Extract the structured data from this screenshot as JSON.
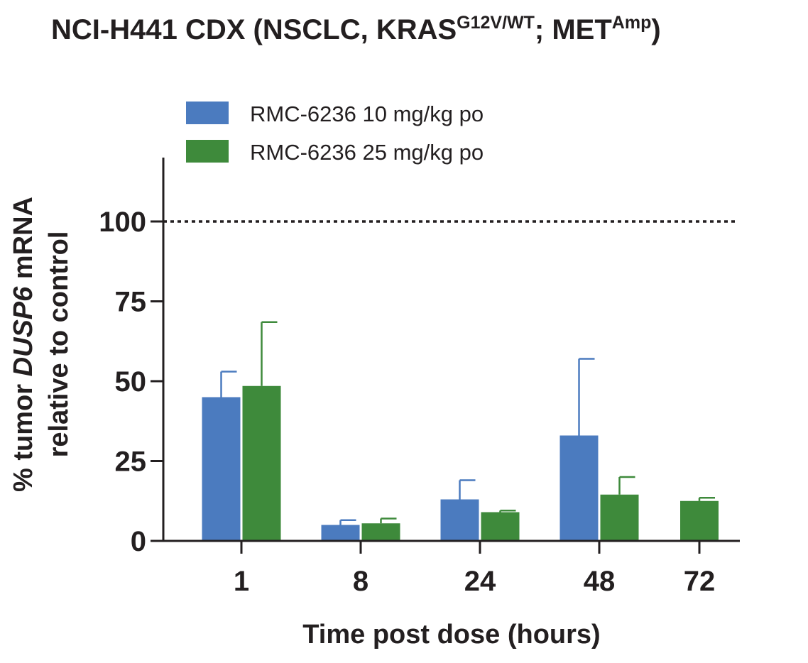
{
  "chart_data": {
    "type": "bar",
    "title": {
      "main": "NCI-H441 CDX (NSCLC, KRAS",
      "sup1": "G12V/WT",
      "mid": "; MET",
      "sup2": "Amp",
      "end": ")"
    },
    "xlabel": "Time post dose (hours)",
    "ylabel": {
      "line1_pre": "% tumor ",
      "line1_gene": "DUSP6",
      "line1_post": " mRNA",
      "line2": "relative to control"
    },
    "categories": [
      "1",
      "8",
      "24",
      "48",
      "72"
    ],
    "ylim": [
      0,
      120
    ],
    "yticks": [
      0,
      25,
      50,
      75,
      100
    ],
    "reference_line": 100,
    "grid": false,
    "legend_position": "top-left",
    "series": [
      {
        "name": "RMC-6236 10 mg/kg po",
        "color": "#4b7bbf",
        "values": [
          45,
          5,
          13,
          33,
          null
        ],
        "errors": [
          8,
          1.5,
          6,
          24,
          null
        ]
      },
      {
        "name": "RMC-6236 25 mg/kg po",
        "color": "#3e8a3b",
        "values": [
          48.5,
          5.5,
          9,
          14.5,
          12.5
        ],
        "errors": [
          20,
          1.5,
          0.5,
          5.5,
          1
        ]
      }
    ]
  }
}
